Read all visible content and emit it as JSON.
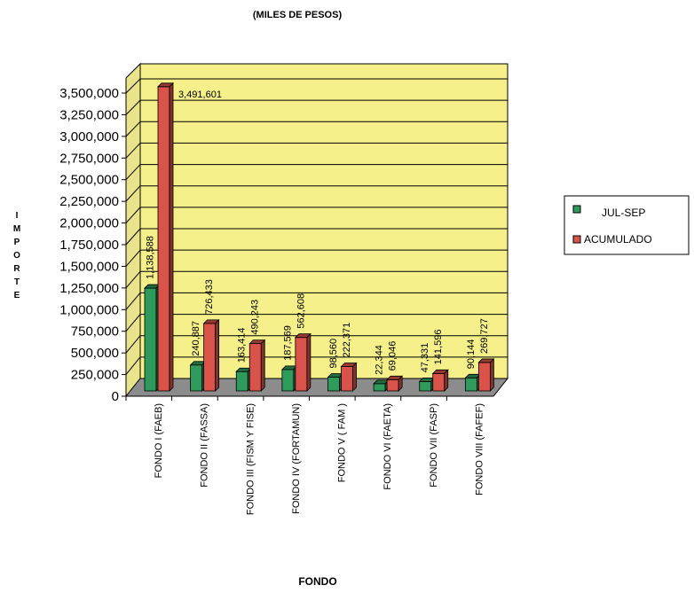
{
  "chart_data": {
    "type": "bar",
    "title": "(MILES DE PESOS)",
    "xlabel": "FONDO",
    "ylabel": "IMPORTE",
    "ylim": [
      0,
      3500000
    ],
    "ytick_labels": [
      "0",
      "250,000",
      "500,000",
      "750,000",
      "1,000,000",
      "1,250,000",
      "1,500,000",
      "1,750,000",
      "2,000,000",
      "2,250,000",
      "2,500,000",
      "2,750,000",
      "3,000,000",
      "3,250,000",
      "3,500,000"
    ],
    "categories": [
      "FONDO I  (FAEB)",
      "FONDO II (FASSA)",
      "FONDO III  (FISM Y FISE)",
      "FONDO IV (FORTAMUN)",
      "FONDO V  ( FAM )",
      "FONDO VI (FAETA)",
      "FONDO VII  (FASP)",
      "FONDO VIII  (FAFEF)"
    ],
    "series": [
      {
        "name": "JUL-SEP",
        "color": "#2e9a5c",
        "values": [
          1138588,
          240887,
          163414,
          187569,
          98560,
          22344,
          47331,
          90144
        ],
        "labels": [
          "1,138,588",
          "240,887",
          "163,414",
          "187,569",
          "98,560",
          "22,344",
          "47,331",
          "90,144"
        ]
      },
      {
        "name": "ACUMULADO",
        "color": "#d9534a",
        "values": [
          3491601,
          726433,
          490243,
          562608,
          222371,
          69046,
          141596,
          269727
        ],
        "labels": [
          "3,491,601",
          "726,433",
          "490,243",
          "562,608",
          "222,371",
          "69,046",
          "141,596",
          "269,727"
        ]
      }
    ],
    "grid": true,
    "legend": "right",
    "plot_background": "#f5f08a",
    "floor_color": "#8c8c8c"
  }
}
